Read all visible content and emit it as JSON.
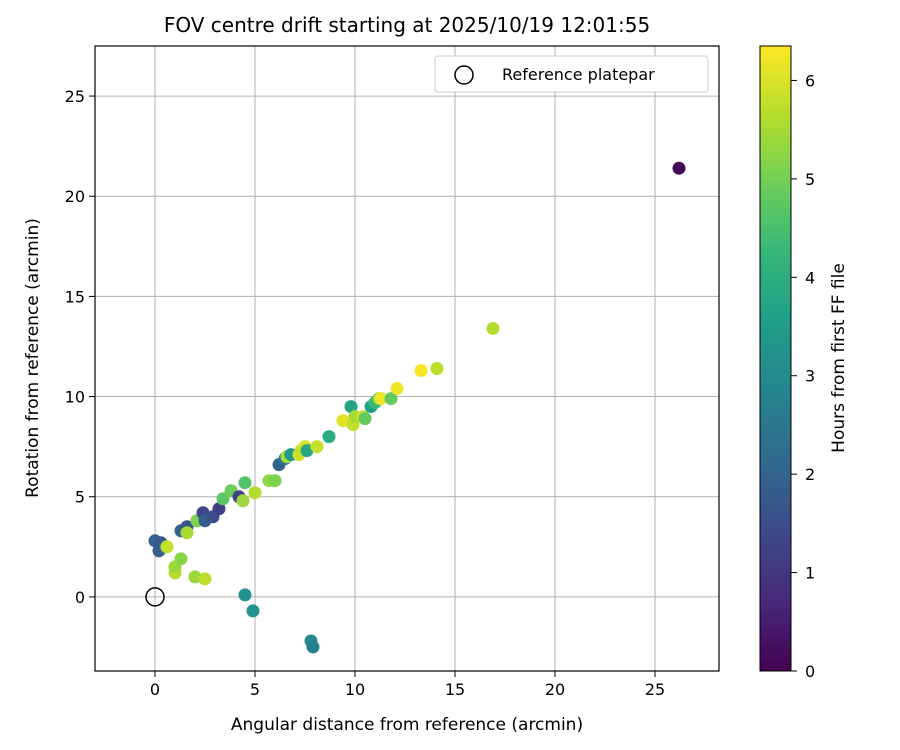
{
  "chart_data": {
    "type": "scatter",
    "title": "FOV centre drift starting at 2025/10/19 12:01:55",
    "xlabel": "Angular distance from reference (arcmin)",
    "ylabel": "Rotation from reference (arcmin)",
    "xlim": [
      -3,
      28.2
    ],
    "ylim": [
      -3.7,
      27.5
    ],
    "xticks": [
      0,
      5,
      10,
      15,
      20,
      25
    ],
    "yticks": [
      0,
      5,
      10,
      15,
      20,
      25
    ],
    "grid": true,
    "legend": {
      "position": "top-right",
      "entries": [
        "Reference platepar"
      ]
    },
    "reference_point": {
      "x": 0,
      "y": 0,
      "label": "Reference platepar"
    },
    "colorbar": {
      "label": "Hours from first FF file",
      "colormap": "viridis",
      "range": [
        0,
        6.35
      ],
      "ticks": [
        0,
        1,
        2,
        3,
        4,
        5,
        6
      ]
    },
    "points": [
      {
        "x": 26.2,
        "y": 21.4,
        "c": 0.1
      },
      {
        "x": 0.0,
        "y": 2.8,
        "c": 2.0
      },
      {
        "x": 0.2,
        "y": 2.3,
        "c": 1.9
      },
      {
        "x": 0.3,
        "y": 2.7,
        "c": 1.8
      },
      {
        "x": 0.5,
        "y": 2.5,
        "c": 2.3
      },
      {
        "x": 0.6,
        "y": 2.5,
        "c": 5.8
      },
      {
        "x": 1.0,
        "y": 1.2,
        "c": 5.6
      },
      {
        "x": 1.0,
        "y": 1.5,
        "c": 5.4
      },
      {
        "x": 1.3,
        "y": 1.9,
        "c": 5.2
      },
      {
        "x": 1.3,
        "y": 3.3,
        "c": 2.0
      },
      {
        "x": 1.6,
        "y": 3.5,
        "c": 1.7
      },
      {
        "x": 1.6,
        "y": 3.2,
        "c": 5.5
      },
      {
        "x": 2.0,
        "y": 1.0,
        "c": 5.4
      },
      {
        "x": 2.1,
        "y": 3.8,
        "c": 1.6
      },
      {
        "x": 2.1,
        "y": 3.8,
        "c": 5.1
      },
      {
        "x": 2.4,
        "y": 4.2,
        "c": 1.4
      },
      {
        "x": 2.5,
        "y": 0.9,
        "c": 5.7
      },
      {
        "x": 2.5,
        "y": 3.8,
        "c": 1.9
      },
      {
        "x": 2.9,
        "y": 4.0,
        "c": 1.5
      },
      {
        "x": 3.2,
        "y": 4.4,
        "c": 1.2
      },
      {
        "x": 3.4,
        "y": 4.9,
        "c": 4.7
      },
      {
        "x": 3.8,
        "y": 5.3,
        "c": 4.9
      },
      {
        "x": 4.2,
        "y": 5.0,
        "c": 1.3
      },
      {
        "x": 4.4,
        "y": 4.8,
        "c": 5.4
      },
      {
        "x": 4.5,
        "y": 5.7,
        "c": 4.6
      },
      {
        "x": 4.5,
        "y": 0.1,
        "c": 3.2
      },
      {
        "x": 4.9,
        "y": -0.7,
        "c": 3.3
      },
      {
        "x": 5.0,
        "y": 5.2,
        "c": 5.6
      },
      {
        "x": 5.7,
        "y": 5.8,
        "c": 5.3
      },
      {
        "x": 6.0,
        "y": 5.8,
        "c": 5.1
      },
      {
        "x": 6.2,
        "y": 6.6,
        "c": 2.0
      },
      {
        "x": 6.5,
        "y": 6.9,
        "c": 2.6
      },
      {
        "x": 6.6,
        "y": 7.0,
        "c": 5.5
      },
      {
        "x": 6.8,
        "y": 7.1,
        "c": 3.4
      },
      {
        "x": 7.2,
        "y": 7.1,
        "c": 5.9
      },
      {
        "x": 7.3,
        "y": 7.3,
        "c": 5.8
      },
      {
        "x": 7.5,
        "y": 7.5,
        "c": 6.0
      },
      {
        "x": 7.6,
        "y": 7.3,
        "c": 3.8
      },
      {
        "x": 7.8,
        "y": -2.2,
        "c": 3.0
      },
      {
        "x": 7.9,
        "y": -2.5,
        "c": 2.8
      },
      {
        "x": 8.1,
        "y": 7.5,
        "c": 5.8
      },
      {
        "x": 8.7,
        "y": 8.0,
        "c": 3.9
      },
      {
        "x": 9.4,
        "y": 8.8,
        "c": 6.1
      },
      {
        "x": 9.8,
        "y": 9.5,
        "c": 3.7
      },
      {
        "x": 9.9,
        "y": 8.6,
        "c": 5.8
      },
      {
        "x": 10.0,
        "y": 9.0,
        "c": 5.5
      },
      {
        "x": 10.4,
        "y": 9.0,
        "c": 5.9
      },
      {
        "x": 10.5,
        "y": 8.9,
        "c": 4.8
      },
      {
        "x": 10.8,
        "y": 9.5,
        "c": 3.6
      },
      {
        "x": 11.0,
        "y": 9.7,
        "c": 4.3
      },
      {
        "x": 11.2,
        "y": 9.9,
        "c": 5.2
      },
      {
        "x": 11.3,
        "y": 9.9,
        "c": 6.2
      },
      {
        "x": 11.8,
        "y": 9.9,
        "c": 4.8
      },
      {
        "x": 12.1,
        "y": 10.4,
        "c": 6.2
      },
      {
        "x": 13.3,
        "y": 11.3,
        "c": 6.3
      },
      {
        "x": 14.1,
        "y": 11.4,
        "c": 5.7
      },
      {
        "x": 16.9,
        "y": 13.4,
        "c": 5.6
      }
    ]
  }
}
